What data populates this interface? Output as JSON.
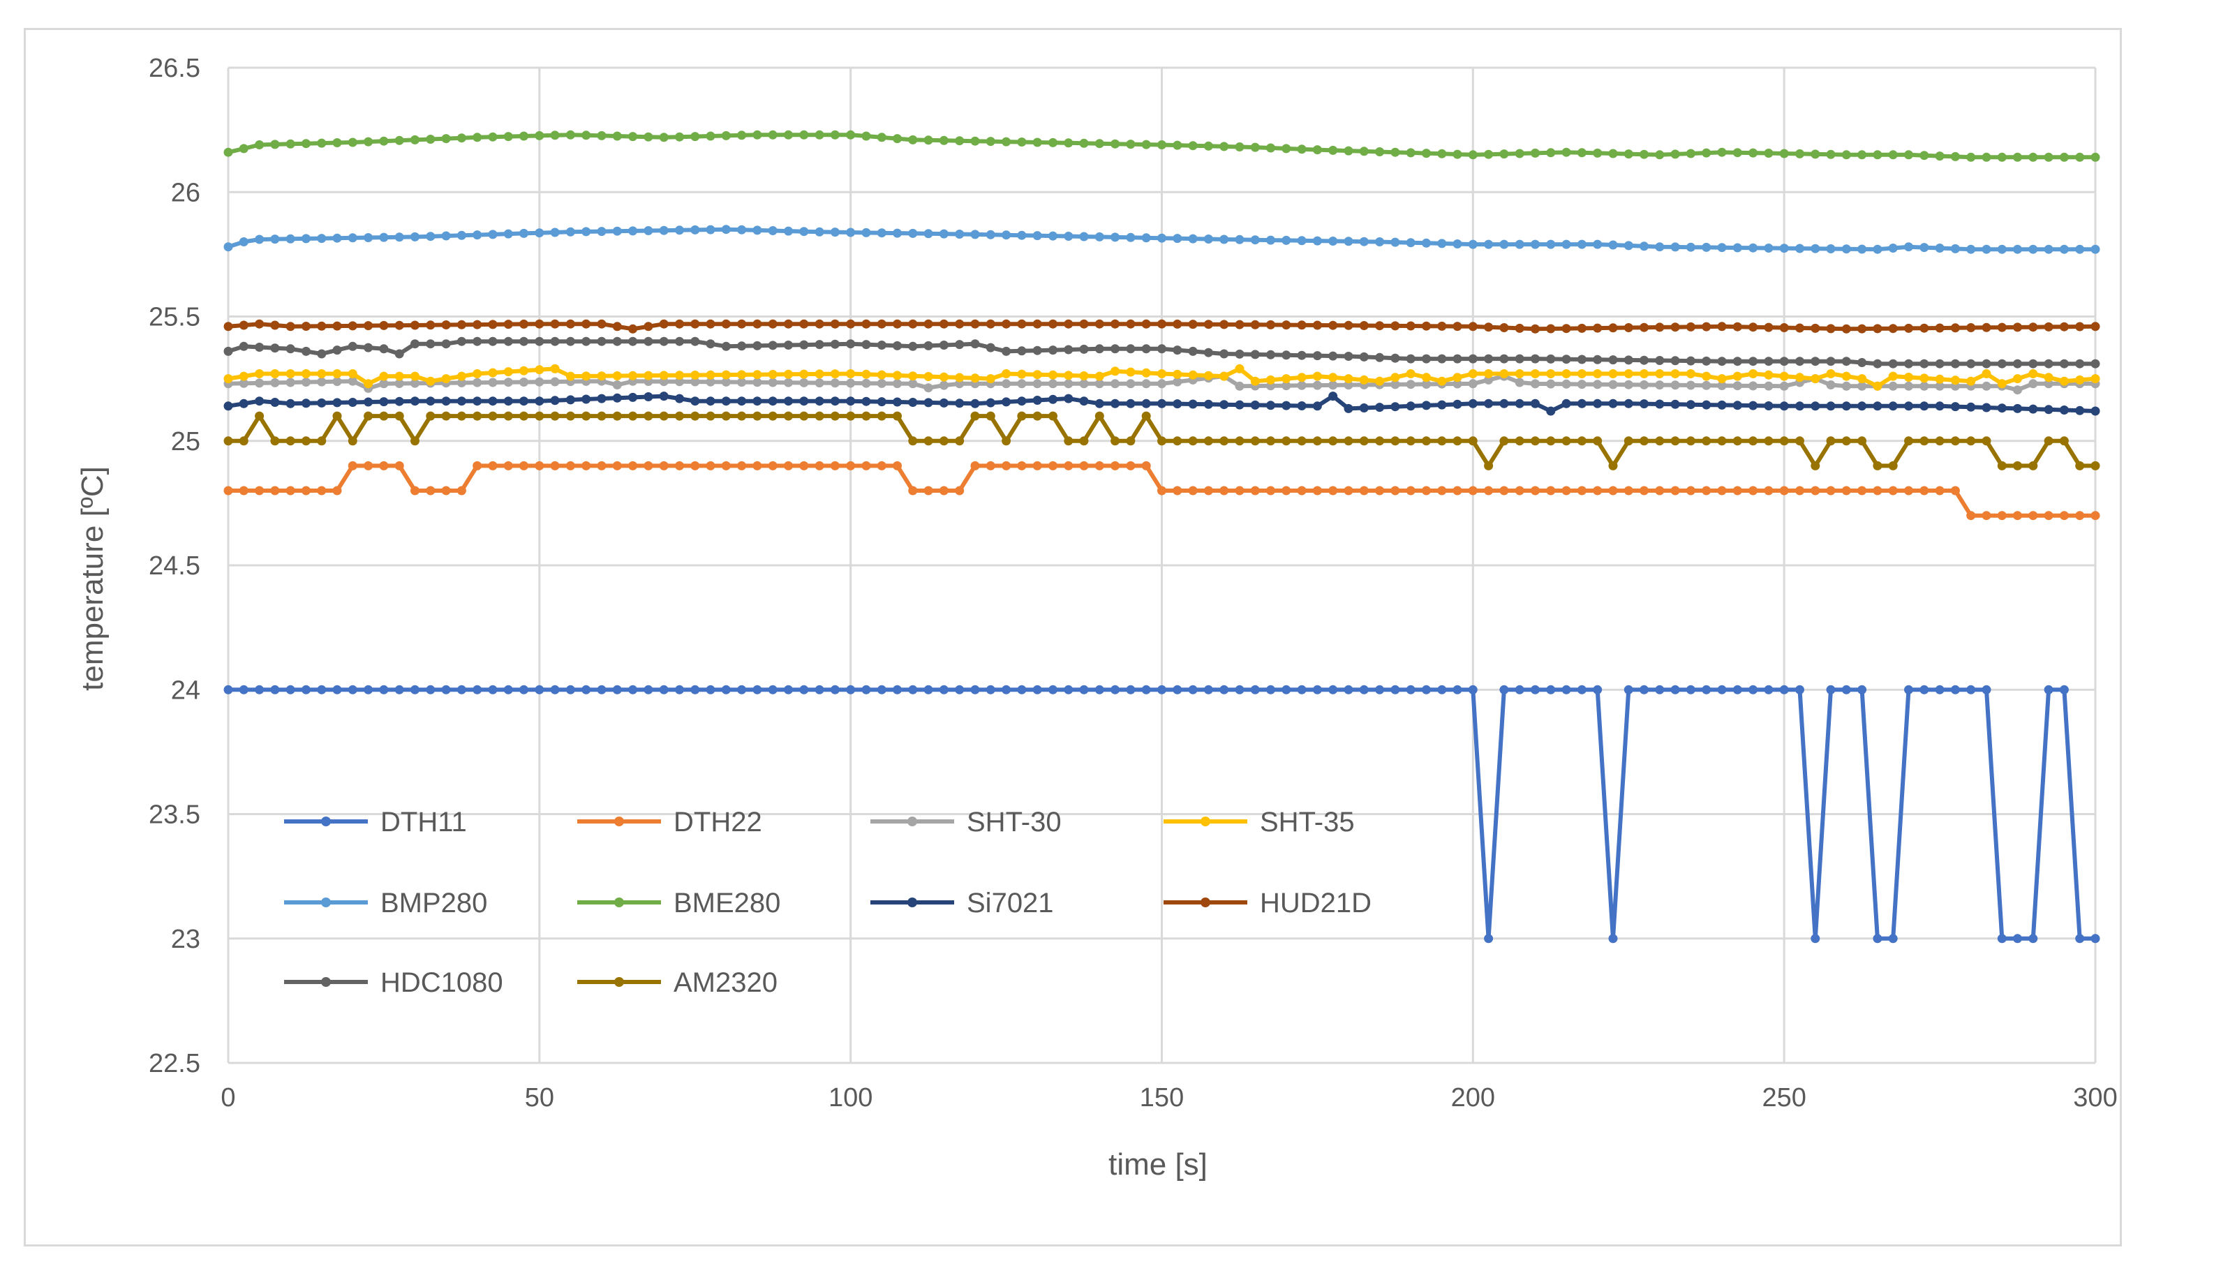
{
  "chart_data": {
    "type": "line",
    "title": "",
    "xlabel": "time [s]",
    "ylabel": "temperature [ºC]",
    "xlim": [
      0,
      300
    ],
    "ylim": [
      22.5,
      26.5
    ],
    "x_ticks": [
      0,
      50,
      100,
      150,
      200,
      250,
      300
    ],
    "y_ticks": [
      22.5,
      23,
      23.5,
      24,
      24.5,
      25,
      25.5,
      26,
      26.5
    ],
    "grid": true,
    "legend_position": "bottom-left",
    "sample_interval_s": 2.5,
    "series": [
      {
        "name": "DTH11",
        "color": "#4472c4",
        "segments": [
          [
            0,
            24
          ],
          [
            200,
            24
          ],
          [
            202.5,
            23
          ],
          [
            205,
            24
          ],
          [
            220,
            24
          ],
          [
            222.5,
            23
          ],
          [
            225,
            24
          ],
          [
            252.5,
            24
          ],
          [
            255,
            23
          ],
          [
            257.5,
            24
          ],
          [
            262.5,
            24
          ],
          [
            265,
            23
          ],
          [
            267.5,
            23
          ],
          [
            270,
            24
          ],
          [
            282.5,
            24
          ],
          [
            285,
            23
          ],
          [
            290,
            23
          ],
          [
            292.5,
            24
          ],
          [
            295,
            24
          ],
          [
            297.5,
            23
          ],
          [
            300,
            23
          ]
        ]
      },
      {
        "name": "DTH22",
        "color": "#ed7d31",
        "segments": [
          [
            0,
            24.8
          ],
          [
            17.5,
            24.8
          ],
          [
            20,
            24.9
          ],
          [
            27.5,
            24.9
          ],
          [
            30,
            24.8
          ],
          [
            37.5,
            24.8
          ],
          [
            40,
            24.9
          ],
          [
            107.5,
            24.9
          ],
          [
            110,
            24.8
          ],
          [
            117.5,
            24.8
          ],
          [
            120,
            24.9
          ],
          [
            147.5,
            24.9
          ],
          [
            150,
            24.8
          ],
          [
            277.5,
            24.8
          ],
          [
            280,
            24.7
          ],
          [
            300,
            24.7
          ]
        ]
      },
      {
        "name": "SHT-30",
        "color": "#a5a5a5",
        "segments": [
          [
            0,
            25.23
          ],
          [
            20,
            25.24
          ],
          [
            21,
            25.2
          ],
          [
            25,
            25.23
          ],
          [
            60,
            25.24
          ],
          [
            61,
            25.21
          ],
          [
            64,
            25.24
          ],
          [
            110,
            25.23
          ],
          [
            113,
            25.21
          ],
          [
            116,
            25.23
          ],
          [
            150,
            25.23
          ],
          [
            160,
            25.26
          ],
          [
            162,
            25.22
          ],
          [
            200,
            25.23
          ],
          [
            205,
            25.26
          ],
          [
            208,
            25.23
          ],
          [
            250,
            25.22
          ],
          [
            255,
            25.25
          ],
          [
            258,
            25.22
          ],
          [
            285,
            25.22
          ],
          [
            287,
            25.2
          ],
          [
            290,
            25.23
          ],
          [
            300,
            25.23
          ]
        ]
      },
      {
        "name": "SHT-35",
        "color": "#ffc000",
        "segments": [
          [
            0,
            25.25
          ],
          [
            5,
            25.27
          ],
          [
            20,
            25.27
          ],
          [
            22.5,
            25.23
          ],
          [
            25,
            25.26
          ],
          [
            30,
            25.26
          ],
          [
            32.5,
            25.24
          ],
          [
            40,
            25.27
          ],
          [
            52.5,
            25.29
          ],
          [
            55,
            25.26
          ],
          [
            100,
            25.27
          ],
          [
            122.5,
            25.25
          ],
          [
            125,
            25.27
          ],
          [
            140,
            25.26
          ],
          [
            142.5,
            25.28
          ],
          [
            150,
            25.27
          ],
          [
            160,
            25.26
          ],
          [
            162.5,
            25.29
          ],
          [
            165,
            25.24
          ],
          [
            175,
            25.26
          ],
          [
            185,
            25.24
          ],
          [
            190,
            25.27
          ],
          [
            195,
            25.24
          ],
          [
            200,
            25.27
          ],
          [
            235,
            25.27
          ],
          [
            240,
            25.25
          ],
          [
            245,
            25.27
          ],
          [
            255,
            25.25
          ],
          [
            257.5,
            25.27
          ],
          [
            262.5,
            25.25
          ],
          [
            265,
            25.22
          ],
          [
            267.5,
            25.26
          ],
          [
            280,
            25.24
          ],
          [
            282.5,
            25.27
          ],
          [
            285,
            25.23
          ],
          [
            290,
            25.27
          ],
          [
            295,
            25.24
          ],
          [
            300,
            25.25
          ]
        ]
      },
      {
        "name": "BMP280",
        "color": "#5b9bd5",
        "segments": [
          [
            0,
            25.78
          ],
          [
            2.5,
            25.8
          ],
          [
            5,
            25.81
          ],
          [
            30,
            25.82
          ],
          [
            55,
            25.84
          ],
          [
            80,
            25.85
          ],
          [
            95,
            25.84
          ],
          [
            120,
            25.83
          ],
          [
            140,
            25.82
          ],
          [
            160,
            25.81
          ],
          [
            185,
            25.8
          ],
          [
            200,
            25.79
          ],
          [
            220,
            25.79
          ],
          [
            230,
            25.78
          ],
          [
            265,
            25.77
          ],
          [
            270,
            25.78
          ],
          [
            280,
            25.77
          ],
          [
            300,
            25.77
          ]
        ]
      },
      {
        "name": "BME280",
        "color": "#70ad47",
        "segments": [
          [
            0,
            26.16
          ],
          [
            5,
            26.19
          ],
          [
            20,
            26.2
          ],
          [
            40,
            26.22
          ],
          [
            55,
            26.23
          ],
          [
            70,
            26.22
          ],
          [
            85,
            26.23
          ],
          [
            100,
            26.23
          ],
          [
            110,
            26.21
          ],
          [
            130,
            26.2
          ],
          [
            150,
            26.19
          ],
          [
            165,
            26.18
          ],
          [
            175,
            26.17
          ],
          [
            200,
            26.15
          ],
          [
            215,
            26.16
          ],
          [
            230,
            26.15
          ],
          [
            240,
            26.16
          ],
          [
            260,
            26.15
          ],
          [
            270,
            26.15
          ],
          [
            280,
            26.14
          ],
          [
            300,
            26.14
          ]
        ]
      },
      {
        "name": "Si7021",
        "color": "#264478",
        "segments": [
          [
            0,
            25.14
          ],
          [
            5,
            25.16
          ],
          [
            10,
            25.15
          ],
          [
            30,
            25.16
          ],
          [
            50,
            25.16
          ],
          [
            70,
            25.18
          ],
          [
            75,
            25.16
          ],
          [
            100,
            25.16
          ],
          [
            120,
            25.15
          ],
          [
            135,
            25.17
          ],
          [
            140,
            25.15
          ],
          [
            150,
            25.15
          ],
          [
            175,
            25.14
          ],
          [
            177.5,
            25.18
          ],
          [
            180,
            25.13
          ],
          [
            200,
            25.15
          ],
          [
            210,
            25.15
          ],
          [
            212.5,
            25.12
          ],
          [
            215,
            25.15
          ],
          [
            225,
            25.15
          ],
          [
            250,
            25.14
          ],
          [
            275,
            25.14
          ],
          [
            300,
            25.12
          ]
        ]
      },
      {
        "name": "HUD21D",
        "color": "#9e480e",
        "segments": [
          [
            0,
            25.46
          ],
          [
            5,
            25.47
          ],
          [
            10,
            25.46
          ],
          [
            50,
            25.47
          ],
          [
            60,
            25.47
          ],
          [
            65,
            25.45
          ],
          [
            70,
            25.47
          ],
          [
            150,
            25.47
          ],
          [
            200,
            25.46
          ],
          [
            210,
            25.45
          ],
          [
            240,
            25.46
          ],
          [
            260,
            25.45
          ],
          [
            300,
            25.46
          ]
        ]
      },
      {
        "name": "HDC1080",
        "color": "#636363",
        "segments": [
          [
            0,
            25.36
          ],
          [
            2.5,
            25.38
          ],
          [
            10,
            25.37
          ],
          [
            15,
            25.35
          ],
          [
            20,
            25.38
          ],
          [
            25,
            25.37
          ],
          [
            27.5,
            25.35
          ],
          [
            30,
            25.39
          ],
          [
            35,
            25.39
          ],
          [
            37.5,
            25.4
          ],
          [
            55,
            25.4
          ],
          [
            75,
            25.4
          ],
          [
            80,
            25.38
          ],
          [
            100,
            25.39
          ],
          [
            110,
            25.38
          ],
          [
            120,
            25.39
          ],
          [
            125,
            25.36
          ],
          [
            140,
            25.37
          ],
          [
            150,
            25.37
          ],
          [
            160,
            25.35
          ],
          [
            180,
            25.34
          ],
          [
            190,
            25.33
          ],
          [
            210,
            25.33
          ],
          [
            240,
            25.32
          ],
          [
            260,
            25.32
          ],
          [
            265,
            25.31
          ],
          [
            300,
            25.31
          ]
        ]
      },
      {
        "name": "AM2320",
        "color": "#997300",
        "segments": [
          [
            0,
            25
          ],
          [
            2.5,
            25
          ],
          [
            5,
            25.1
          ],
          [
            7.5,
            25
          ],
          [
            15,
            25
          ],
          [
            17.5,
            25.1
          ],
          [
            20,
            25
          ],
          [
            22.5,
            25.1
          ],
          [
            27.5,
            25.1
          ],
          [
            30,
            25
          ],
          [
            32.5,
            25.1
          ],
          [
            107.5,
            25.1
          ],
          [
            110,
            25
          ],
          [
            117.5,
            25
          ],
          [
            120,
            25.1
          ],
          [
            122.5,
            25.1
          ],
          [
            125,
            25
          ],
          [
            127.5,
            25.1
          ],
          [
            132.5,
            25.1
          ],
          [
            135,
            25
          ],
          [
            137.5,
            25
          ],
          [
            140,
            25.1
          ],
          [
            142.5,
            25
          ],
          [
            145,
            25
          ],
          [
            147.5,
            25.1
          ],
          [
            150,
            25
          ],
          [
            200,
            25
          ],
          [
            202.5,
            24.9
          ],
          [
            205,
            25
          ],
          [
            220,
            25
          ],
          [
            222.5,
            24.9
          ],
          [
            225,
            25
          ],
          [
            252.5,
            25
          ],
          [
            255,
            24.9
          ],
          [
            257.5,
            25
          ],
          [
            262.5,
            25
          ],
          [
            265,
            24.9
          ],
          [
            267.5,
            24.9
          ],
          [
            270,
            25
          ],
          [
            282.5,
            25
          ],
          [
            285,
            24.9
          ],
          [
            290,
            24.9
          ],
          [
            292.5,
            25
          ],
          [
            295,
            25
          ],
          [
            297.5,
            24.9
          ],
          [
            300,
            24.9
          ]
        ]
      }
    ]
  }
}
